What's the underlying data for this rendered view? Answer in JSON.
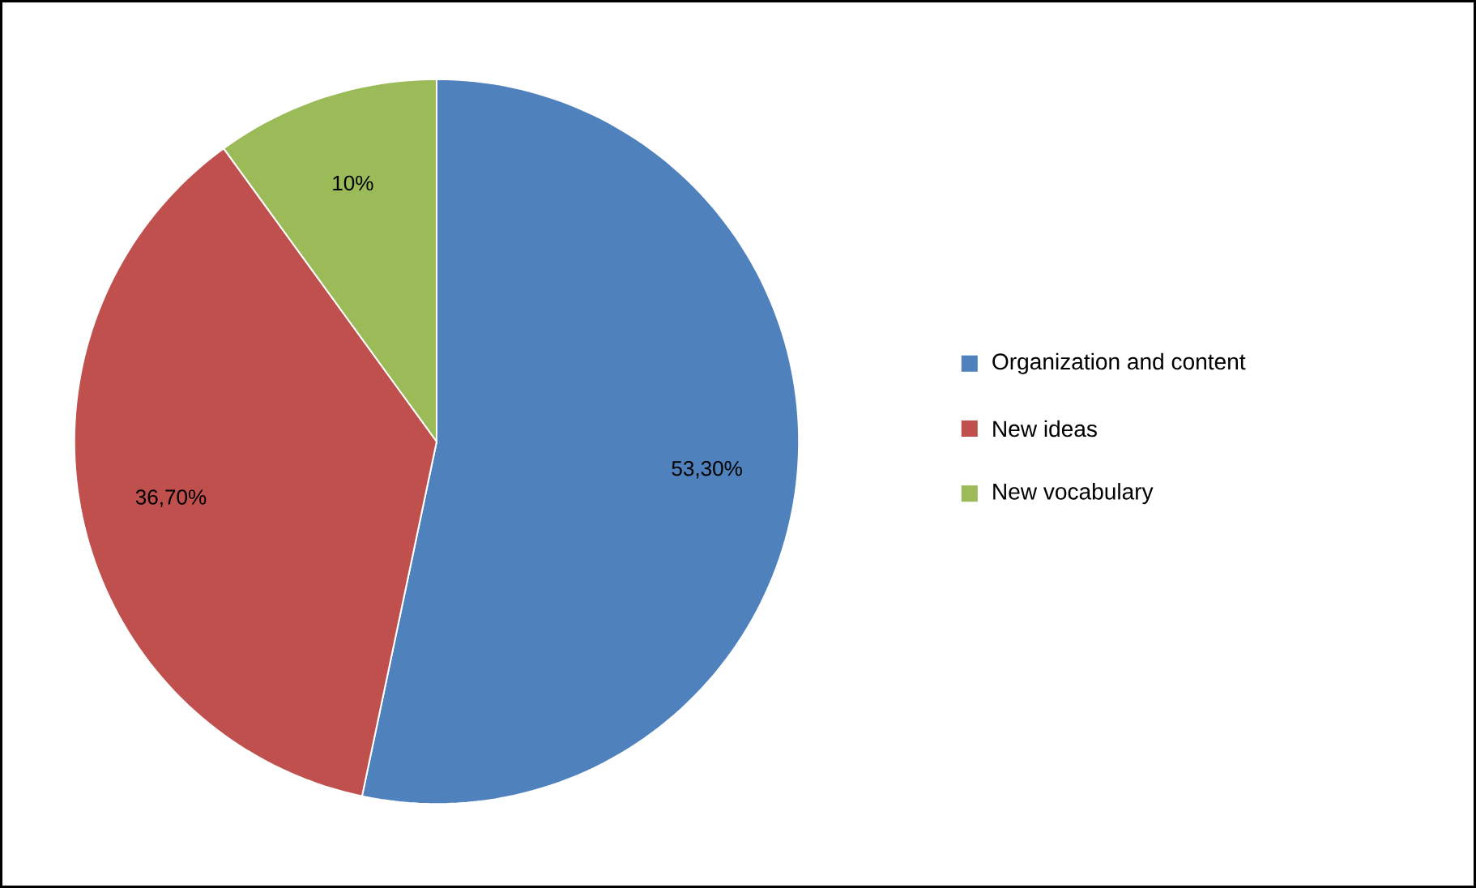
{
  "chart_data": {
    "type": "pie",
    "categories": [
      "Organization and content",
      "New ideas",
      "New vocabulary"
    ],
    "values": [
      53.3,
      36.7,
      10
    ],
    "colors": [
      "#4f81bd",
      "#c0504d",
      "#9bbb59"
    ],
    "value_labels": [
      "53,30%",
      "36,70%",
      "10%"
    ],
    "legend": "right"
  }
}
